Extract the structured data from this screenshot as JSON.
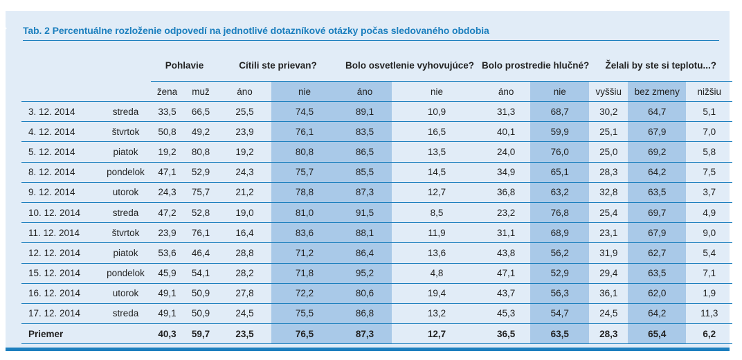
{
  "title": "Tab. 2 Percentuálne rozloženie odpovedí na jednotlivé dotazníkové otázky počas sledovaného obdobia",
  "groups": {
    "pohlavie": "Pohlavie",
    "prievan": "Cítili ste prievan?",
    "osvetlenie": "Bolo osvetlenie vyhovujúce?",
    "hlucne": "Bolo prostredie hlučné?",
    "teplota": "Želali by ste si teplotu...?"
  },
  "subheaders": [
    "žena",
    "muž",
    "áno",
    "nie",
    "áno",
    "nie",
    "áno",
    "nie",
    "vyššiu",
    "bez zmeny",
    "nižšiu"
  ],
  "rows": [
    {
      "date": "3. 12. 2014",
      "day": "streda",
      "v": [
        "33,5",
        "66,5",
        "25,5",
        "74,5",
        "89,1",
        "10,9",
        "31,3",
        "68,7",
        "30,2",
        "64,7",
        "5,1"
      ]
    },
    {
      "date": "4. 12. 2014",
      "day": "štvrtok",
      "v": [
        "50,8",
        "49,2",
        "23,9",
        "76,1",
        "83,5",
        "16,5",
        "40,1",
        "59,9",
        "25,1",
        "67,9",
        "7,0"
      ]
    },
    {
      "date": "5. 12. 2014",
      "day": "piatok",
      "v": [
        "19,2",
        "80,8",
        "19,2",
        "80,8",
        "86,5",
        "13,5",
        "24,0",
        "76,0",
        "25,0",
        "69,2",
        "5,8"
      ]
    },
    {
      "date": "8. 12. 2014",
      "day": "pondelok",
      "v": [
        "47,1",
        "52,9",
        "24,3",
        "75,7",
        "85,5",
        "14,5",
        "34,9",
        "65,1",
        "28,3",
        "64,2",
        "7,5"
      ]
    },
    {
      "date": "9. 12. 2014",
      "day": "utorok",
      "v": [
        "24,3",
        "75,7",
        "21,2",
        "78,8",
        "87,3",
        "12,7",
        "36,8",
        "63,2",
        "32,8",
        "63,5",
        "3,7"
      ]
    },
    {
      "date": "10. 12. 2014",
      "day": "streda",
      "v": [
        "47,2",
        "52,8",
        "19,0",
        "81,0",
        "91,5",
        "8,5",
        "23,2",
        "76,8",
        "25,4",
        "69,7",
        "4,9"
      ]
    },
    {
      "date": "11. 12. 2014",
      "day": "štvrtok",
      "v": [
        "23,9",
        "76,1",
        "16,4",
        "83,6",
        "88,1",
        "11,9",
        "31,1",
        "68,9",
        "23,1",
        "67,9",
        "9,0"
      ]
    },
    {
      "date": "12. 12. 2014",
      "day": "piatok",
      "v": [
        "53,6",
        "46,4",
        "28,8",
        "71,2",
        "86,4",
        "13,6",
        "43,8",
        "56,2",
        "31,9",
        "62,7",
        "5,4"
      ]
    },
    {
      "date": "15. 12. 2014",
      "day": "pondelok",
      "v": [
        "45,9",
        "54,1",
        "28,2",
        "71,8",
        "95,2",
        "4,8",
        "47,1",
        "52,9",
        "29,4",
        "63,5",
        "7,1"
      ]
    },
    {
      "date": "16. 12. 2014",
      "day": "utorok",
      "v": [
        "49,1",
        "50,9",
        "27,8",
        "72,2",
        "80,6",
        "19,4",
        "43,7",
        "56,3",
        "36,1",
        "62,0",
        "1,9"
      ]
    },
    {
      "date": "17. 12. 2014",
      "day": "streda",
      "v": [
        "49,1",
        "50,9",
        "24,5",
        "75,5",
        "86,8",
        "13,2",
        "45,3",
        "54,7",
        "24,5",
        "64,2",
        "11,3"
      ]
    }
  ],
  "average": {
    "label": "Priemer",
    "v": [
      "40,3",
      "59,7",
      "23,5",
      "76,5",
      "87,3",
      "12,7",
      "36,5",
      "63,5",
      "28,3",
      "65,4",
      "6,2"
    ]
  },
  "colors": {
    "accent": "#1c7fbe",
    "panel": "#e1ecf7",
    "shade": "#a9c9e8"
  }
}
